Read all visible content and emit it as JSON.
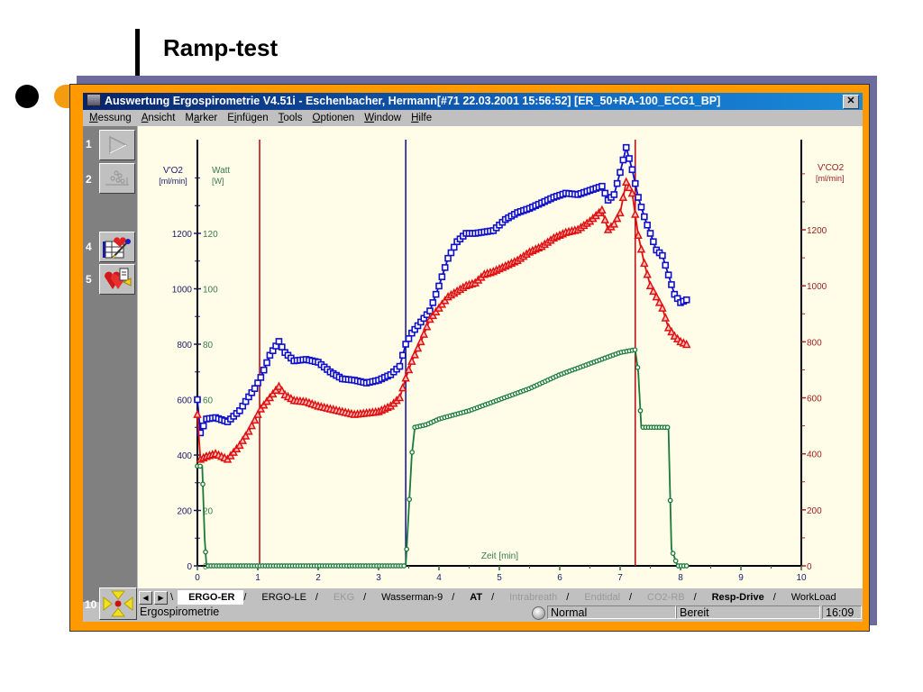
{
  "slide": {
    "title": "Ramp-test"
  },
  "window": {
    "title": "Auswertung Ergospirometrie  V4.51i - Eschenbacher, Hermann[#71 22.03.2001 15:56:52] [ER_50+RA-100_ECG1_BP]",
    "close_label": "✕"
  },
  "menu": {
    "items": [
      {
        "label": "Messung",
        "accel": "M"
      },
      {
        "label": "Ansicht",
        "accel": "A"
      },
      {
        "label": "Marker",
        "accel": "a"
      },
      {
        "label": "Einfügen",
        "accel": "i"
      },
      {
        "label": "Tools",
        "accel": "T"
      },
      {
        "label": "Optionen",
        "accel": "O"
      },
      {
        "label": "Window",
        "accel": "W"
      },
      {
        "label": "Hilfe",
        "accel": "H"
      }
    ]
  },
  "toolbar": {
    "buttons": [
      {
        "num": "1",
        "icon": "play-triangle-icon",
        "enabled": false
      },
      {
        "num": "2",
        "icon": "scatter-plot-icon",
        "enabled": false
      },
      {
        "num": "4",
        "icon": "heart-table-pen-icon",
        "enabled": true
      },
      {
        "num": "5",
        "icon": "heart-document-icon",
        "enabled": true
      },
      {
        "num": "10",
        "icon": "move-arrows-icon",
        "enabled": true
      }
    ]
  },
  "tabs": {
    "items": [
      {
        "label": "ERGO-ER",
        "state": "active"
      },
      {
        "label": "ERGO-LE",
        "state": "normal"
      },
      {
        "label": "EKG",
        "state": "disabled"
      },
      {
        "label": "Wasserman-9",
        "state": "normal"
      },
      {
        "label": "AT",
        "state": "bold"
      },
      {
        "label": "Intrabreath",
        "state": "disabled"
      },
      {
        "label": "Endtidal",
        "state": "disabled"
      },
      {
        "label": "CO2-RB",
        "state": "disabled"
      },
      {
        "label": "Resp-Drive",
        "state": "bold"
      },
      {
        "label": "WorkLoad",
        "state": "normal"
      }
    ]
  },
  "status": {
    "left": "Ergospirometrie",
    "mode": "Normal",
    "state": "Bereit",
    "time": "16:09"
  },
  "colors": {
    "vo2": "#1010c8",
    "vco2": "#e01010",
    "watt": "#1a7a3a",
    "marker_red": "#c0101a",
    "marker_blue": "#1a1a9a",
    "plot_bg": "#fffde8",
    "frame_orange": "#ff9900"
  },
  "chart_data": {
    "type": "line",
    "title": "Ramp-test",
    "xlabel": "Zeit  [min]",
    "xlim": [
      0,
      10
    ],
    "x_ticks": [
      "0",
      "1",
      "2",
      "3",
      "4",
      "5",
      "6",
      "7",
      "8",
      "9",
      "10"
    ],
    "left_axis": {
      "label_vo2": "V'O2",
      "unit_vo2": "[ml/min]",
      "label_watt": "Watt",
      "unit_watt": "[W]",
      "ticks_vo2": [
        "0",
        "200",
        "400",
        "600",
        "800",
        "1000",
        "1200"
      ],
      "ticks_watt": [
        "0",
        "20",
        "40",
        "60",
        "80",
        "100",
        "120"
      ],
      "ylim": [
        0,
        1500
      ]
    },
    "right_axis": {
      "label": "V'CO2",
      "unit": "[ml/min]",
      "ticks": [
        "0",
        "200",
        "400",
        "600",
        "800",
        "1000",
        "1200"
      ],
      "ylim": [
        0,
        1500
      ]
    },
    "markers": [
      {
        "x": 1.03,
        "color": "red"
      },
      {
        "x": 3.45,
        "color": "blue"
      },
      {
        "x": 7.25,
        "color": "red"
      }
    ],
    "series": [
      {
        "name": "V'O2 [ml/min]",
        "marker": "square",
        "x": [
          0.0,
          0.05,
          0.15,
          0.3,
          0.5,
          0.7,
          0.85,
          0.95,
          1.05,
          1.2,
          1.35,
          1.45,
          1.6,
          1.8,
          2.0,
          2.2,
          2.4,
          2.6,
          2.8,
          3.0,
          3.2,
          3.35,
          3.45,
          3.55,
          3.7,
          3.85,
          4.0,
          4.15,
          4.3,
          4.45,
          4.6,
          4.75,
          4.9,
          5.1,
          5.3,
          5.5,
          5.7,
          5.9,
          6.1,
          6.3,
          6.5,
          6.7,
          6.8,
          6.9,
          7.0,
          7.1,
          7.2,
          7.3,
          7.4,
          7.5,
          7.6,
          7.7,
          7.8,
          7.9,
          8.0,
          8.1
        ],
        "values": [
          600,
          480,
          530,
          535,
          520,
          560,
          610,
          640,
          680,
          760,
          810,
          770,
          740,
          745,
          735,
          700,
          675,
          670,
          660,
          670,
          690,
          720,
          800,
          840,
          880,
          920,
          1010,
          1110,
          1170,
          1200,
          1200,
          1205,
          1210,
          1250,
          1275,
          1290,
          1310,
          1330,
          1345,
          1340,
          1355,
          1370,
          1320,
          1340,
          1420,
          1510,
          1430,
          1330,
          1260,
          1200,
          1140,
          1120,
          1050,
          980,
          950,
          960
        ]
      },
      {
        "name": "V'CO2 [ml/min]",
        "marker": "triangle",
        "x": [
          0.0,
          0.05,
          0.15,
          0.3,
          0.5,
          0.7,
          0.85,
          0.95,
          1.05,
          1.2,
          1.35,
          1.45,
          1.6,
          1.8,
          2.0,
          2.2,
          2.4,
          2.6,
          2.8,
          3.0,
          3.2,
          3.35,
          3.45,
          3.55,
          3.7,
          3.85,
          4.0,
          4.15,
          4.3,
          4.45,
          4.6,
          4.75,
          4.9,
          5.1,
          5.3,
          5.5,
          5.7,
          5.9,
          6.1,
          6.3,
          6.5,
          6.7,
          6.8,
          6.9,
          7.0,
          7.1,
          7.2,
          7.3,
          7.4,
          7.5,
          7.6,
          7.7,
          7.8,
          7.9,
          8.0,
          8.1
        ],
        "values": [
          540,
          380,
          390,
          400,
          380,
          430,
          480,
          520,
          560,
          600,
          640,
          610,
          590,
          585,
          570,
          560,
          550,
          540,
          545,
          550,
          570,
          600,
          670,
          730,
          800,
          880,
          920,
          960,
          980,
          1000,
          1010,
          1040,
          1050,
          1070,
          1090,
          1120,
          1140,
          1170,
          1190,
          1200,
          1230,
          1270,
          1200,
          1220,
          1260,
          1370,
          1330,
          1180,
          1080,
          1000,
          960,
          920,
          850,
          820,
          800,
          790
        ]
      },
      {
        "name": "Watt [W]",
        "marker": "circle",
        "x": [
          0.0,
          0.08,
          0.12,
          0.15,
          0.3,
          1.0,
          2.0,
          3.0,
          3.45,
          3.55,
          3.6,
          3.8,
          4.0,
          4.5,
          5.0,
          5.5,
          6.0,
          6.5,
          7.0,
          7.25,
          7.3,
          7.35,
          7.5,
          7.8,
          7.85,
          7.95,
          8.1
        ],
        "values": [
          36,
          36,
          10,
          0,
          0,
          0,
          0,
          0,
          0,
          40,
          50,
          51,
          53,
          56,
          60,
          64,
          69,
          73,
          77,
          78,
          70,
          50,
          50,
          50,
          6,
          0,
          0
        ]
      }
    ]
  }
}
